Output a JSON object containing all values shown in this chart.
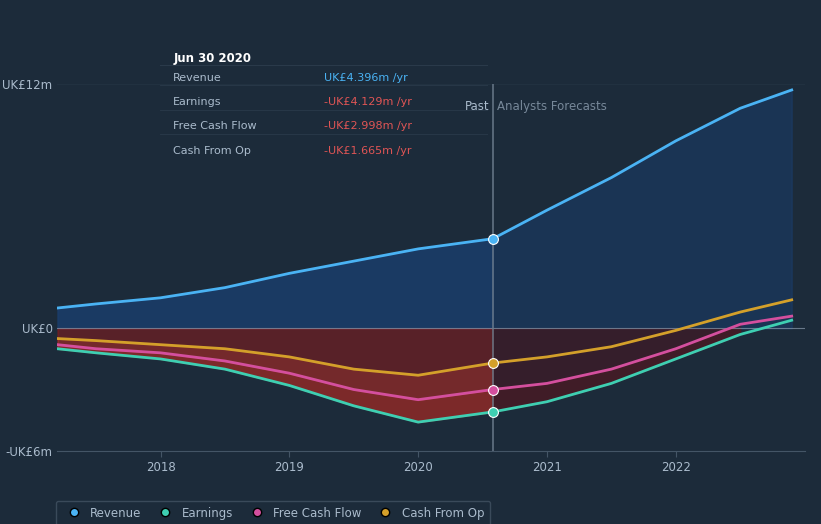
{
  "bg_color": "#1c2b3a",
  "plot_bg_color": "#1c2b3a",
  "ylabel_top": "UK£12m",
  "ylabel_zero": "UK£0",
  "ylabel_bottom": "-UK£6m",
  "x_labels": [
    "2018",
    "2019",
    "2020",
    "2021",
    "2022"
  ],
  "past_label": "Past",
  "forecast_label": "Analysts Forecasts",
  "divider_x": 2020.58,
  "y_max": 12,
  "y_min": -6,
  "revenue_color": "#4ab3f4",
  "earnings_color": "#3ecfb2",
  "fcf_color": "#d44f9e",
  "cashfromop_color": "#d4a02a",
  "tooltip_bg": "#080c10",
  "tooltip_title": "Jun 30 2020",
  "tooltip_rows": [
    {
      "label": "Revenue",
      "value": "UK£4.396m /yr",
      "value_color": "#4ab3f4"
    },
    {
      "label": "Earnings",
      "value": "-UK£4.129m /yr",
      "value_color": "#e05555"
    },
    {
      "label": "Free Cash Flow",
      "value": "-UK£2.998m /yr",
      "value_color": "#e05555"
    },
    {
      "label": "Cash From Op",
      "value": "-UK£1.665m /yr",
      "value_color": "#e05555"
    }
  ],
  "revenue_x": [
    2017.2,
    2017.5,
    2018.0,
    2018.5,
    2019.0,
    2019.5,
    2020.0,
    2020.58,
    2021.0,
    2021.5,
    2022.0,
    2022.5,
    2022.9
  ],
  "revenue_y": [
    1.0,
    1.2,
    1.5,
    2.0,
    2.7,
    3.3,
    3.9,
    4.4,
    5.8,
    7.4,
    9.2,
    10.8,
    11.7
  ],
  "earnings_x": [
    2017.2,
    2017.5,
    2018.0,
    2018.5,
    2019.0,
    2019.5,
    2020.0,
    2020.58,
    2021.0,
    2021.5,
    2022.0,
    2022.5,
    2022.9
  ],
  "earnings_y": [
    -1.0,
    -1.2,
    -1.5,
    -2.0,
    -2.8,
    -3.8,
    -4.6,
    -4.1,
    -3.6,
    -2.7,
    -1.5,
    -0.3,
    0.4
  ],
  "fcf_x": [
    2017.2,
    2017.5,
    2018.0,
    2018.5,
    2019.0,
    2019.5,
    2020.0,
    2020.58,
    2021.0,
    2021.5,
    2022.0,
    2022.5,
    2022.9
  ],
  "fcf_y": [
    -0.8,
    -1.0,
    -1.2,
    -1.6,
    -2.2,
    -3.0,
    -3.5,
    -3.0,
    -2.7,
    -2.0,
    -1.0,
    0.2,
    0.6
  ],
  "cashfromop_x": [
    2017.2,
    2017.5,
    2018.0,
    2018.5,
    2019.0,
    2019.5,
    2020.0,
    2020.58,
    2021.0,
    2021.5,
    2022.0,
    2022.5,
    2022.9
  ],
  "cashfromop_y": [
    -0.5,
    -0.6,
    -0.8,
    -1.0,
    -1.4,
    -2.0,
    -2.3,
    -1.7,
    -1.4,
    -0.9,
    -0.1,
    0.8,
    1.4
  ],
  "legend_items": [
    {
      "label": "Revenue",
      "color": "#4ab3f4"
    },
    {
      "label": "Earnings",
      "color": "#3ecfb2"
    },
    {
      "label": "Free Cash Flow",
      "color": "#d44f9e"
    },
    {
      "label": "Cash From Op",
      "color": "#d4a02a"
    }
  ],
  "x_min": 2017.2,
  "x_max": 2023.0
}
